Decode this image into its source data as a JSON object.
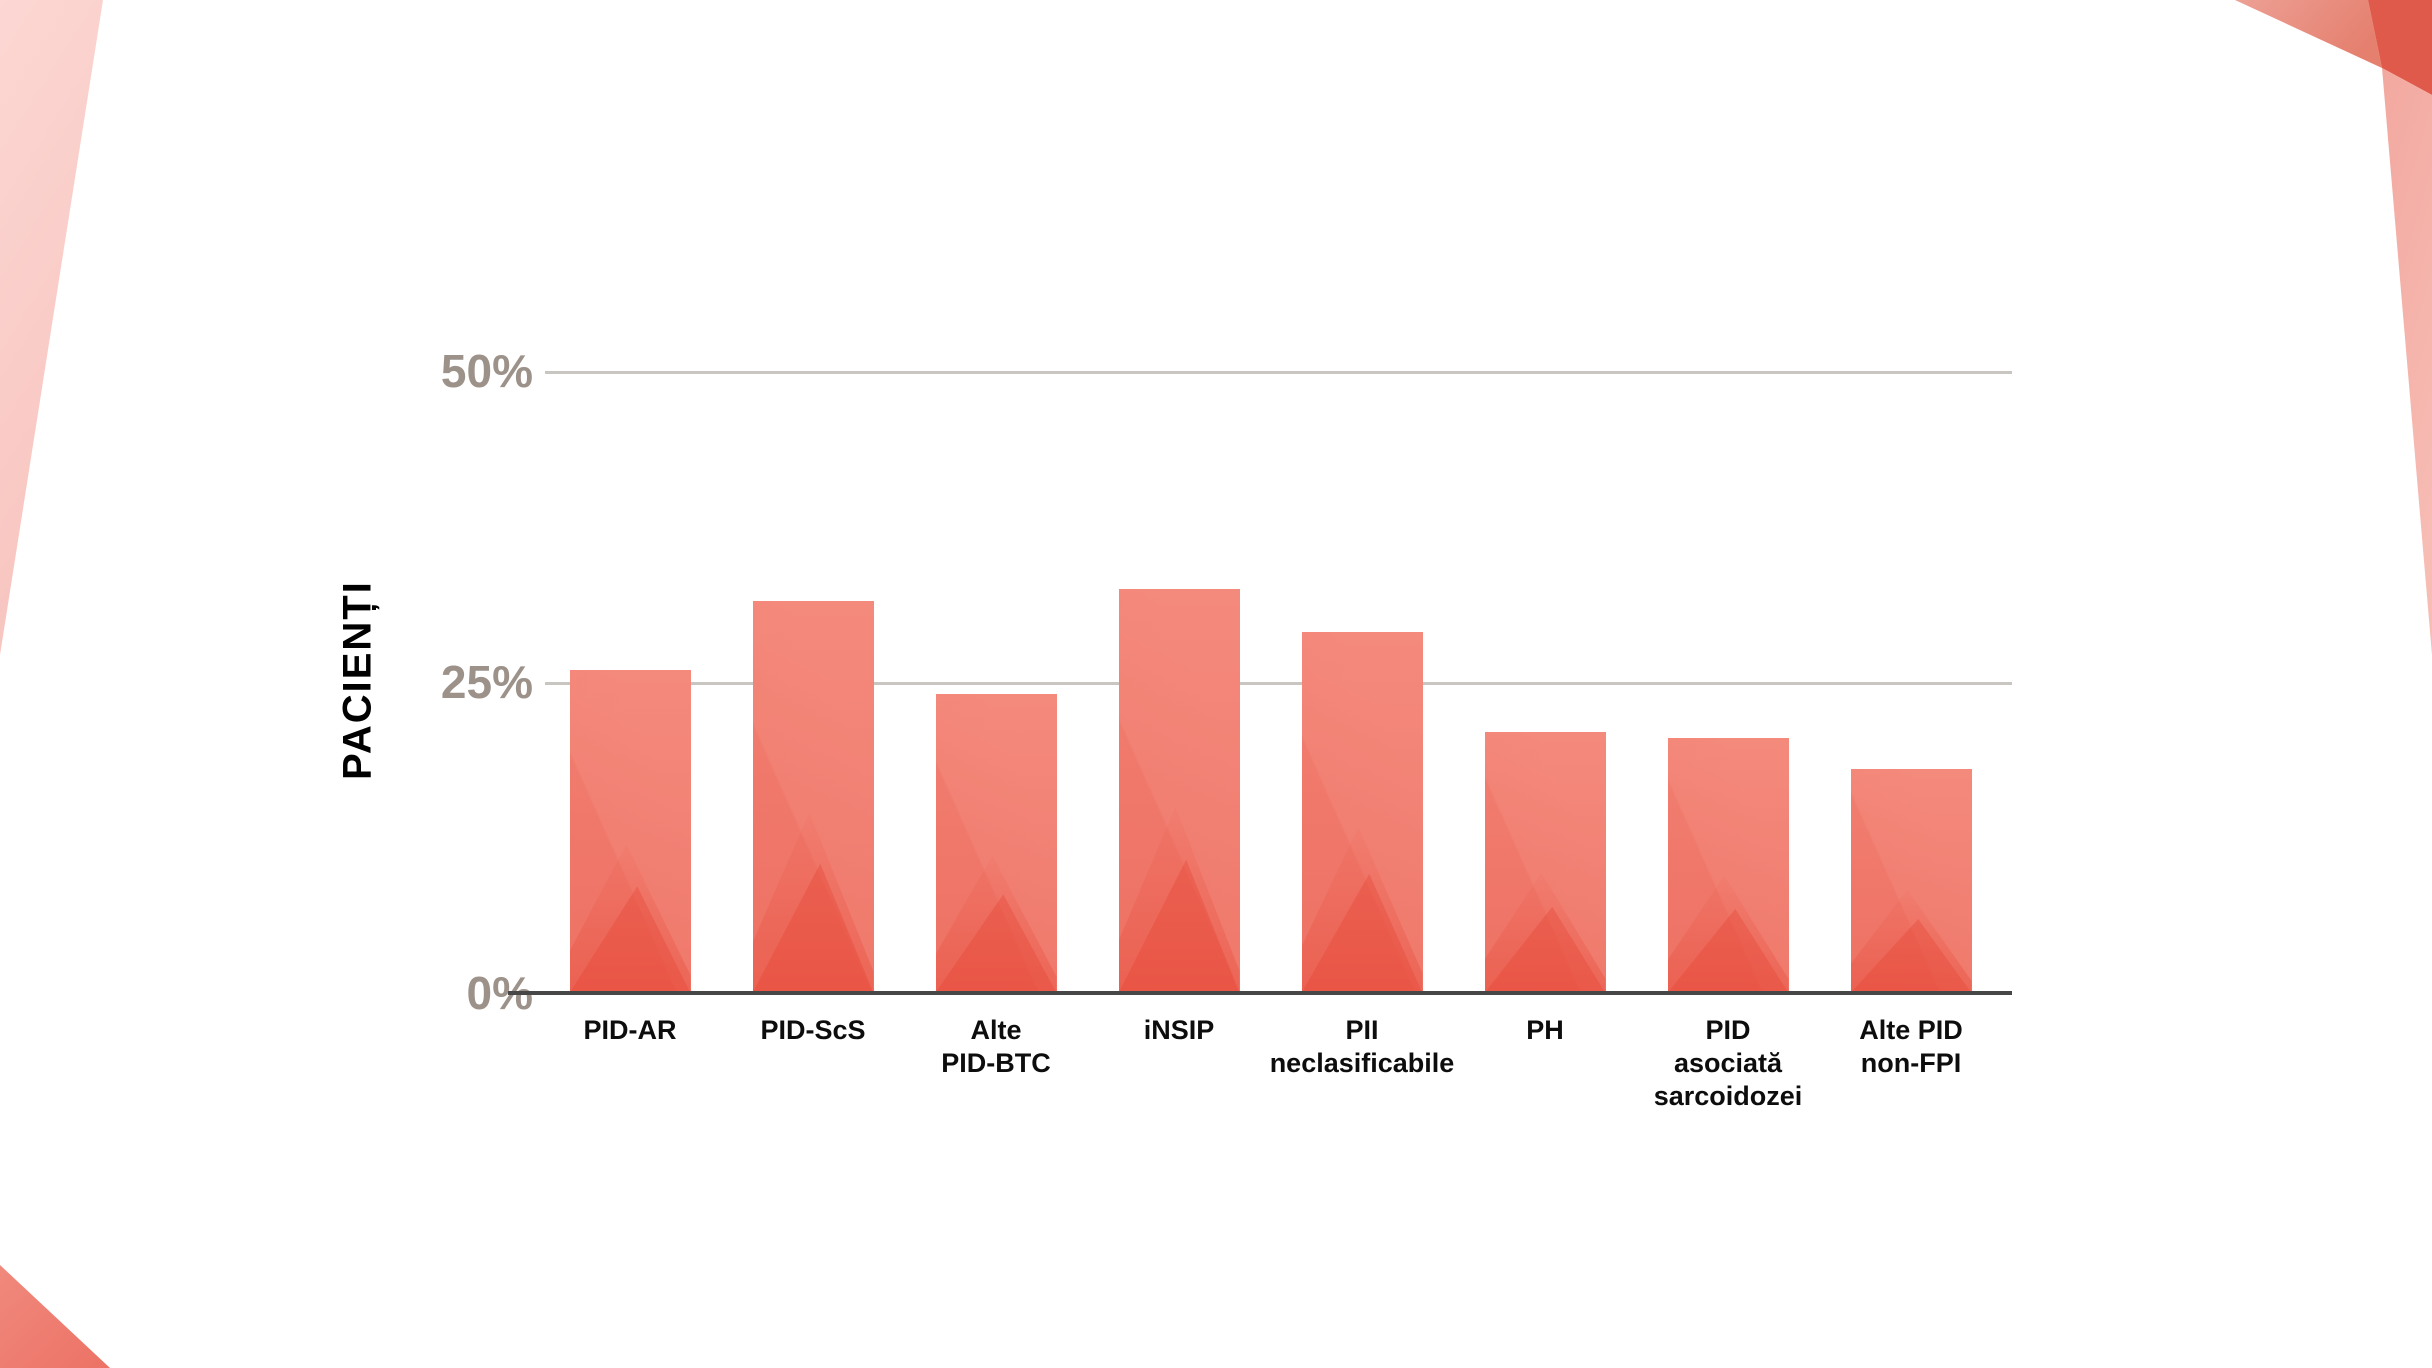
{
  "slide": {
    "background_color": "#ffffff",
    "accent_colors": {
      "top_left_wedge": "#fad0cc",
      "top_right_band_salmon": "#ea9186",
      "top_right_corner_dark": "#e05a4b",
      "top_right_band_pink": "#f4ada5",
      "bottom_left_triangle": "#ef8175"
    }
  },
  "chart_data": {
    "type": "bar",
    "title": "",
    "xlabel": "",
    "ylabel": "PACIENȚI",
    "categories": [
      "PID-AR",
      "PID-ScS",
      "Alte\nPID-BTC",
      "iNSIP",
      "PII\nneclasificabile",
      "PH",
      "PID\nasociată\nsarcoidozei",
      "Alte PID\nnon-FPI"
    ],
    "values": [
      26,
      31.5,
      24,
      32.5,
      29,
      21,
      20.5,
      18
    ],
    "unit": "%",
    "ylim": [
      0,
      55
    ],
    "yticks": [
      {
        "label": "0%",
        "value": 0
      },
      {
        "label": "25%",
        "value": 25
      },
      {
        "label": "50%",
        "value": 50
      }
    ],
    "grid": "horizontal",
    "legend": "none",
    "bar_color": "#f28275",
    "bar_shade_color": "#e84b3a",
    "axis_line_color": "#474747",
    "gridline_color": "#c9c6c2",
    "tick_label_color": "#9c928a",
    "category_label_color": "#0d0d0d"
  }
}
